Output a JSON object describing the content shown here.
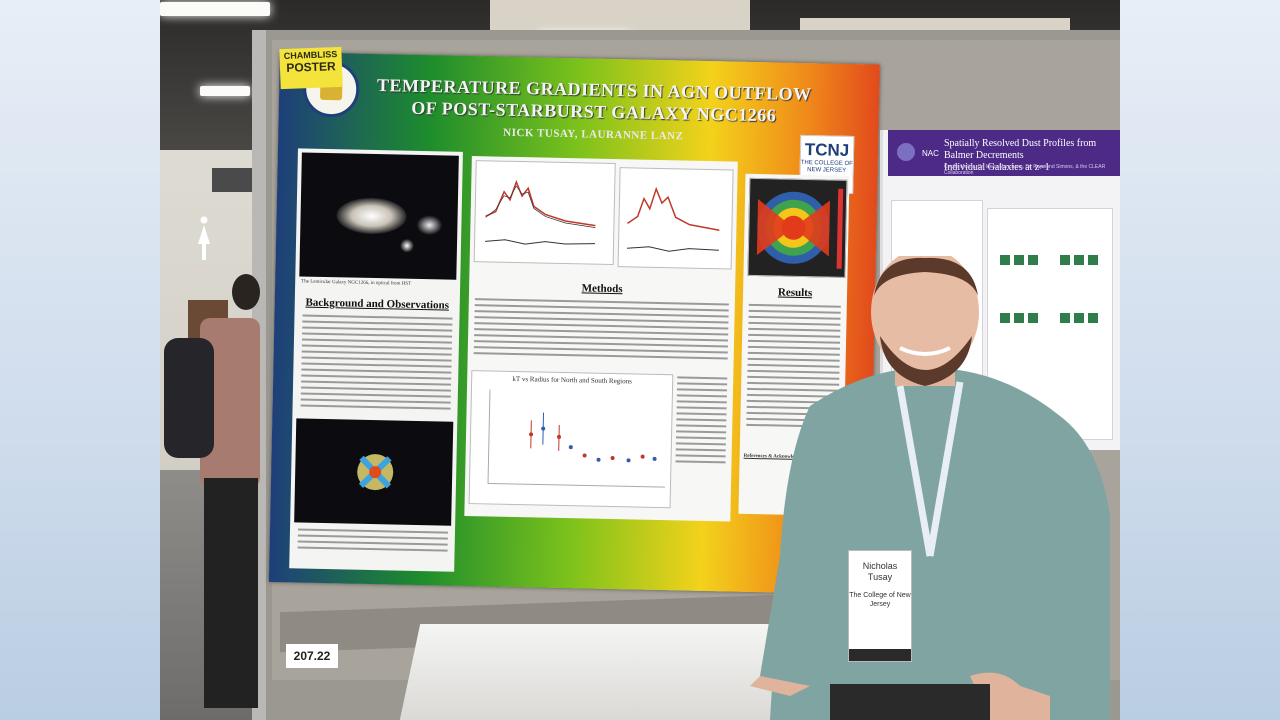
{
  "sticky_note": {
    "line1": "CHAMBLISS",
    "line2": "POSTER"
  },
  "poster": {
    "title_line1": "TEMPERATURE GRADIENTS IN AGN OUTFLOW",
    "title_line2": "OF POST-STARBURST GALAXY NGC1266",
    "authors": "NICK TUSAY, LAURANNE LANZ",
    "logo_text": "TCNJ",
    "logo_subtext": "THE COLLEGE OF NEW JERSEY",
    "seal_text": "THE COLLEGE OF NEW JERSEY",
    "section_background": "Background and Observations",
    "section_methods": "Methods",
    "section_results": "Results",
    "section_references": "References & Acknowledgments",
    "chart_caption": "kT vs Radius for North and South Regions",
    "galaxy_caption": "The Lenticular Galaxy NGC1266, in optical from HST"
  },
  "board_number": "207.22",
  "neighbor_poster": {
    "title_line1": "Spatially Resolved Dust Profiles from Balmer Decrements",
    "title_line2": "Individual Galaxies at z~1",
    "authors": "Cecilia Malina, Dr. Ineka Mancheno, Dr. Raymond Simons, & the CLEAR Collaboration"
  },
  "badge": {
    "name_line1": "Nicholas",
    "name_line2": "Tusay",
    "org": "The College of New Jersey"
  }
}
